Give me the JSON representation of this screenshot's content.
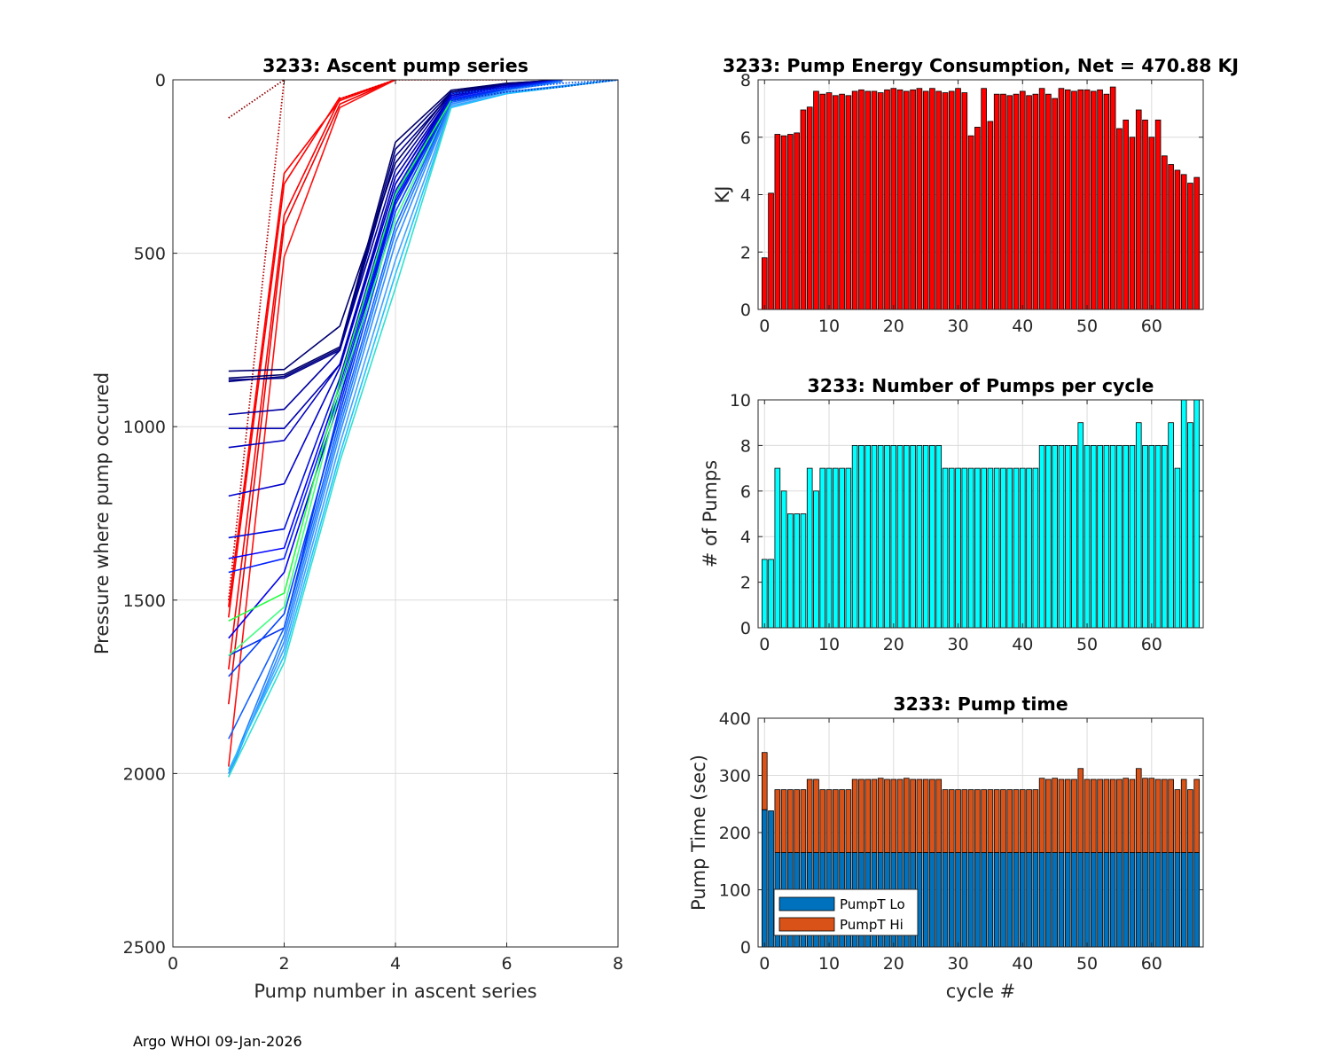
{
  "footer": {
    "text": "Argo WHOI 09-Jan-2026"
  },
  "colors": {
    "energy_bar": "#ff0000",
    "pumps_bar": "#00ffff",
    "lo": "#0072bd",
    "hi": "#d95319",
    "grid": "#dcdcdc"
  },
  "chart_data": [
    {
      "id": "ascent",
      "type": "line",
      "title": "3233: Ascent pump series",
      "xlabel": "Pump number in ascent series",
      "ylabel": "Pressure where pump occured",
      "xlim": [
        0,
        8
      ],
      "ylim": [
        0,
        2500
      ],
      "y_reversed": true,
      "xticks": [
        0,
        2,
        4,
        6,
        8
      ],
      "yticks": [
        0,
        500,
        1000,
        1500,
        2000,
        2500
      ],
      "grid": true,
      "series": [
        {
          "color": "#8b0000",
          "style": "dotted",
          "x": [
            1,
            2
          ],
          "y": [
            110,
            0
          ]
        },
        {
          "color": "#b00000",
          "style": "dotted",
          "x": [
            1,
            2
          ],
          "y": [
            1500,
            0
          ]
        },
        {
          "color": "#ff0000",
          "style": "solid",
          "x": [
            1,
            2,
            3,
            4
          ],
          "y": [
            1520,
            270,
            60,
            0
          ]
        },
        {
          "color": "#ff0000",
          "style": "solid",
          "x": [
            1,
            2,
            3,
            4
          ],
          "y": [
            1700,
            390,
            55,
            0
          ]
        },
        {
          "color": "#ee0000",
          "style": "solid",
          "x": [
            1,
            2,
            3,
            4
          ],
          "y": [
            1800,
            420,
            70,
            0
          ]
        },
        {
          "color": "#ff1010",
          "style": "solid",
          "x": [
            1,
            2,
            3,
            4
          ],
          "y": [
            1980,
            510,
            80,
            0
          ]
        },
        {
          "color": "#ff0000",
          "style": "solid",
          "x": [
            1,
            2,
            3
          ],
          "y": [
            1550,
            300,
            50
          ]
        },
        {
          "color": "#dd0000",
          "style": "dotted",
          "x": [
            3,
            4,
            5,
            6
          ],
          "y": [
            55,
            0,
            0,
            0
          ]
        },
        {
          "color": "#000066",
          "style": "solid",
          "x": [
            1,
            2,
            3,
            4,
            5,
            6,
            7
          ],
          "y": [
            860,
            850,
            770,
            180,
            30,
            10,
            0
          ]
        },
        {
          "color": "#000080",
          "style": "solid",
          "x": [
            1,
            2,
            3,
            4,
            5,
            6,
            7
          ],
          "y": [
            870,
            855,
            775,
            200,
            35,
            12,
            0
          ]
        },
        {
          "color": "#00008b",
          "style": "solid",
          "x": [
            1,
            2,
            3,
            4,
            5,
            6,
            7
          ],
          "y": [
            865,
            860,
            780,
            220,
            40,
            15,
            0
          ]
        },
        {
          "color": "#000070",
          "style": "solid",
          "x": [
            1,
            2,
            3,
            4,
            5,
            6,
            7
          ],
          "y": [
            840,
            835,
            710,
            240,
            35,
            10,
            0
          ]
        },
        {
          "color": "#0000a0",
          "style": "solid",
          "x": [
            1,
            2,
            3,
            4,
            5,
            6,
            7
          ],
          "y": [
            965,
            950,
            780,
            260,
            40,
            15,
            0
          ]
        },
        {
          "color": "#0000b0",
          "style": "solid",
          "x": [
            1,
            2,
            3,
            4,
            5,
            6,
            7
          ],
          "y": [
            1005,
            1005,
            820,
            280,
            45,
            15,
            0
          ]
        },
        {
          "color": "#0000c0",
          "style": "solid",
          "x": [
            1,
            2,
            3,
            4,
            5,
            6,
            7
          ],
          "y": [
            1060,
            1040,
            820,
            300,
            45,
            20,
            0
          ]
        },
        {
          "color": "#0000cd",
          "style": "solid",
          "x": [
            1,
            2,
            3,
            4,
            5,
            6,
            7
          ],
          "y": [
            1200,
            1165,
            830,
            300,
            50,
            20,
            0
          ]
        },
        {
          "color": "#0010e0",
          "style": "solid",
          "x": [
            1,
            2,
            3,
            4,
            5,
            6,
            7
          ],
          "y": [
            1320,
            1295,
            860,
            320,
            50,
            20,
            0
          ]
        },
        {
          "color": "#0000ff",
          "style": "solid",
          "x": [
            1,
            2,
            3,
            4,
            5,
            6,
            7
          ],
          "y": [
            1380,
            1350,
            880,
            330,
            55,
            25,
            0
          ]
        },
        {
          "color": "#0020ff",
          "style": "solid",
          "x": [
            1,
            2,
            3,
            4,
            5,
            6,
            7
          ],
          "y": [
            1420,
            1380,
            900,
            340,
            55,
            25,
            0
          ]
        },
        {
          "color": "#0000ee",
          "style": "solid",
          "x": [
            1,
            2,
            3,
            4,
            5,
            6,
            7
          ],
          "y": [
            1610,
            1420,
            920,
            350,
            60,
            25,
            0
          ]
        },
        {
          "color": "#0030ee",
          "style": "solid",
          "x": [
            1,
            2,
            3,
            4,
            5,
            6,
            7
          ],
          "y": [
            1660,
            1580,
            940,
            360,
            60,
            25,
            0
          ]
        },
        {
          "color": "#0040ff",
          "style": "solid",
          "x": [
            1,
            2,
            3,
            4,
            5,
            6,
            7
          ],
          "y": [
            1720,
            1540,
            960,
            380,
            60,
            30,
            0
          ]
        },
        {
          "color": "#20ff40",
          "style": "solid",
          "x": [
            1,
            2,
            3,
            4,
            5
          ],
          "y": [
            1560,
            1480,
            870,
            330,
            60
          ]
        },
        {
          "color": "#40ff80",
          "style": "solid",
          "x": [
            1,
            2,
            3,
            4,
            5
          ],
          "y": [
            1660,
            1520,
            900,
            400,
            65
          ]
        },
        {
          "color": "#1060ff",
          "style": "solid",
          "x": [
            1,
            2,
            3,
            4,
            5,
            6,
            7
          ],
          "y": [
            1900,
            1580,
            980,
            420,
            65,
            30,
            5
          ]
        },
        {
          "color": "#2080ff",
          "style": "solid",
          "x": [
            1,
            2,
            3,
            4,
            5,
            6,
            7
          ],
          "y": [
            2000,
            1600,
            1000,
            440,
            70,
            30,
            5
          ]
        },
        {
          "color": "#3090ff",
          "style": "solid",
          "x": [
            1,
            2,
            3,
            4,
            5,
            6,
            8
          ],
          "y": [
            2010,
            1620,
            1020,
            470,
            70,
            35,
            0
          ]
        },
        {
          "color": "#40a0ff",
          "style": "solid",
          "x": [
            1,
            2,
            3,
            4,
            5,
            6,
            8
          ],
          "y": [
            2000,
            1640,
            1050,
            520,
            75,
            40,
            0
          ]
        },
        {
          "color": "#20c0ff",
          "style": "solid",
          "x": [
            1,
            2,
            3,
            4,
            5,
            6,
            8
          ],
          "y": [
            1990,
            1660,
            1080,
            560,
            80,
            40,
            0
          ]
        },
        {
          "color": "#30e0d0",
          "style": "solid",
          "x": [
            1,
            2,
            3,
            4,
            5
          ],
          "y": [
            2010,
            1680,
            1100,
            600,
            80
          ]
        },
        {
          "color": "#0050ff",
          "style": "dotted",
          "x": [
            5,
            6,
            7,
            8
          ],
          "y": [
            40,
            25,
            10,
            0
          ]
        },
        {
          "color": "#0030c0",
          "style": "dotted",
          "x": [
            5,
            6,
            7,
            8
          ],
          "y": [
            60,
            35,
            20,
            0
          ]
        }
      ]
    },
    {
      "id": "energy",
      "type": "bar",
      "title": "3233: Pump Energy Consumption,  Net = 470.88 KJ",
      "xlabel": "",
      "ylabel": "KJ",
      "xlim": [
        -1,
        68
      ],
      "ylim": [
        0,
        8
      ],
      "xticks": [
        0,
        10,
        20,
        30,
        40,
        50,
        60
      ],
      "yticks": [
        0,
        2,
        4,
        6,
        8
      ],
      "grid": true,
      "x_start": 0,
      "values": [
        1.8,
        4.05,
        6.1,
        6.05,
        6.1,
        6.15,
        6.95,
        7.05,
        7.6,
        7.5,
        7.55,
        7.45,
        7.5,
        7.45,
        7.6,
        7.65,
        7.6,
        7.6,
        7.55,
        7.65,
        7.7,
        7.65,
        7.6,
        7.65,
        7.7,
        7.6,
        7.7,
        7.6,
        7.55,
        7.6,
        7.7,
        7.55,
        6.05,
        6.35,
        7.7,
        6.55,
        7.5,
        7.5,
        7.45,
        7.5,
        7.6,
        7.45,
        7.5,
        7.7,
        7.5,
        7.35,
        7.7,
        7.65,
        7.6,
        7.65,
        7.65,
        7.6,
        7.65,
        7.5,
        7.75,
        6.3,
        6.6,
        6.0,
        6.95,
        6.6,
        6.0,
        6.6,
        5.35,
        5.05,
        4.85,
        4.7,
        4.4,
        4.6
      ]
    },
    {
      "id": "pumps",
      "type": "bar",
      "title": "3233: Number of Pumps per cycle",
      "xlabel": "",
      "ylabel": "# of Pumps",
      "xlim": [
        -1,
        68
      ],
      "ylim": [
        0,
        10
      ],
      "xticks": [
        0,
        10,
        20,
        30,
        40,
        50,
        60
      ],
      "yticks": [
        0,
        2,
        4,
        6,
        8,
        10
      ],
      "grid": true,
      "x_start": 0,
      "values": [
        3,
        3,
        7,
        6,
        5,
        5,
        5,
        7,
        6,
        7,
        7,
        7,
        7,
        7,
        8,
        8,
        8,
        8,
        8,
        8,
        8,
        8,
        8,
        8,
        8,
        8,
        8,
        8,
        7,
        7,
        7,
        7,
        7,
        7,
        7,
        7,
        7,
        7,
        7,
        7,
        7,
        7,
        7,
        8,
        8,
        8,
        8,
        8,
        8,
        9,
        8,
        8,
        8,
        8,
        8,
        8,
        8,
        8,
        9,
        8,
        8,
        8,
        8,
        9,
        7,
        10,
        9,
        10
      ]
    },
    {
      "id": "pumptime",
      "type": "bar",
      "stacked": true,
      "title": "3233: Pump time",
      "xlabel": "cycle #",
      "ylabel": "Pump Time (sec)",
      "xlim": [
        -1,
        68
      ],
      "ylim": [
        0,
        400
      ],
      "xticks": [
        0,
        10,
        20,
        30,
        40,
        50,
        60
      ],
      "yticks": [
        0,
        100,
        200,
        300,
        400
      ],
      "grid": true,
      "x_start": 0,
      "legend": [
        "PumpT Lo",
        "PumpT Hi"
      ],
      "legend_loc": "bottom-left",
      "series": [
        {
          "name": "PumpT Lo",
          "values": [
            240,
            238,
            165,
            165,
            165,
            165,
            165,
            165,
            165,
            165,
            165,
            165,
            165,
            165,
            165,
            165,
            165,
            165,
            165,
            165,
            165,
            165,
            165,
            165,
            165,
            165,
            165,
            165,
            165,
            165,
            165,
            165,
            165,
            165,
            165,
            165,
            165,
            165,
            165,
            165,
            165,
            165,
            165,
            165,
            165,
            165,
            165,
            165,
            165,
            165,
            165,
            165,
            165,
            165,
            165,
            165,
            165,
            165,
            165,
            165,
            165,
            165,
            165,
            165,
            165,
            165,
            165,
            165
          ]
        },
        {
          "name": "PumpT Hi",
          "values": [
            100,
            0,
            110,
            110,
            110,
            110,
            110,
            128,
            128,
            110,
            110,
            110,
            110,
            110,
            128,
            128,
            128,
            128,
            130,
            128,
            128,
            128,
            130,
            128,
            128,
            128,
            128,
            128,
            110,
            110,
            110,
            110,
            110,
            110,
            110,
            110,
            110,
            110,
            110,
            110,
            110,
            110,
            110,
            130,
            128,
            130,
            128,
            128,
            128,
            147,
            128,
            128,
            128,
            128,
            128,
            128,
            130,
            128,
            147,
            130,
            130,
            128,
            128,
            128,
            110,
            128,
            110,
            128
          ]
        }
      ]
    }
  ]
}
